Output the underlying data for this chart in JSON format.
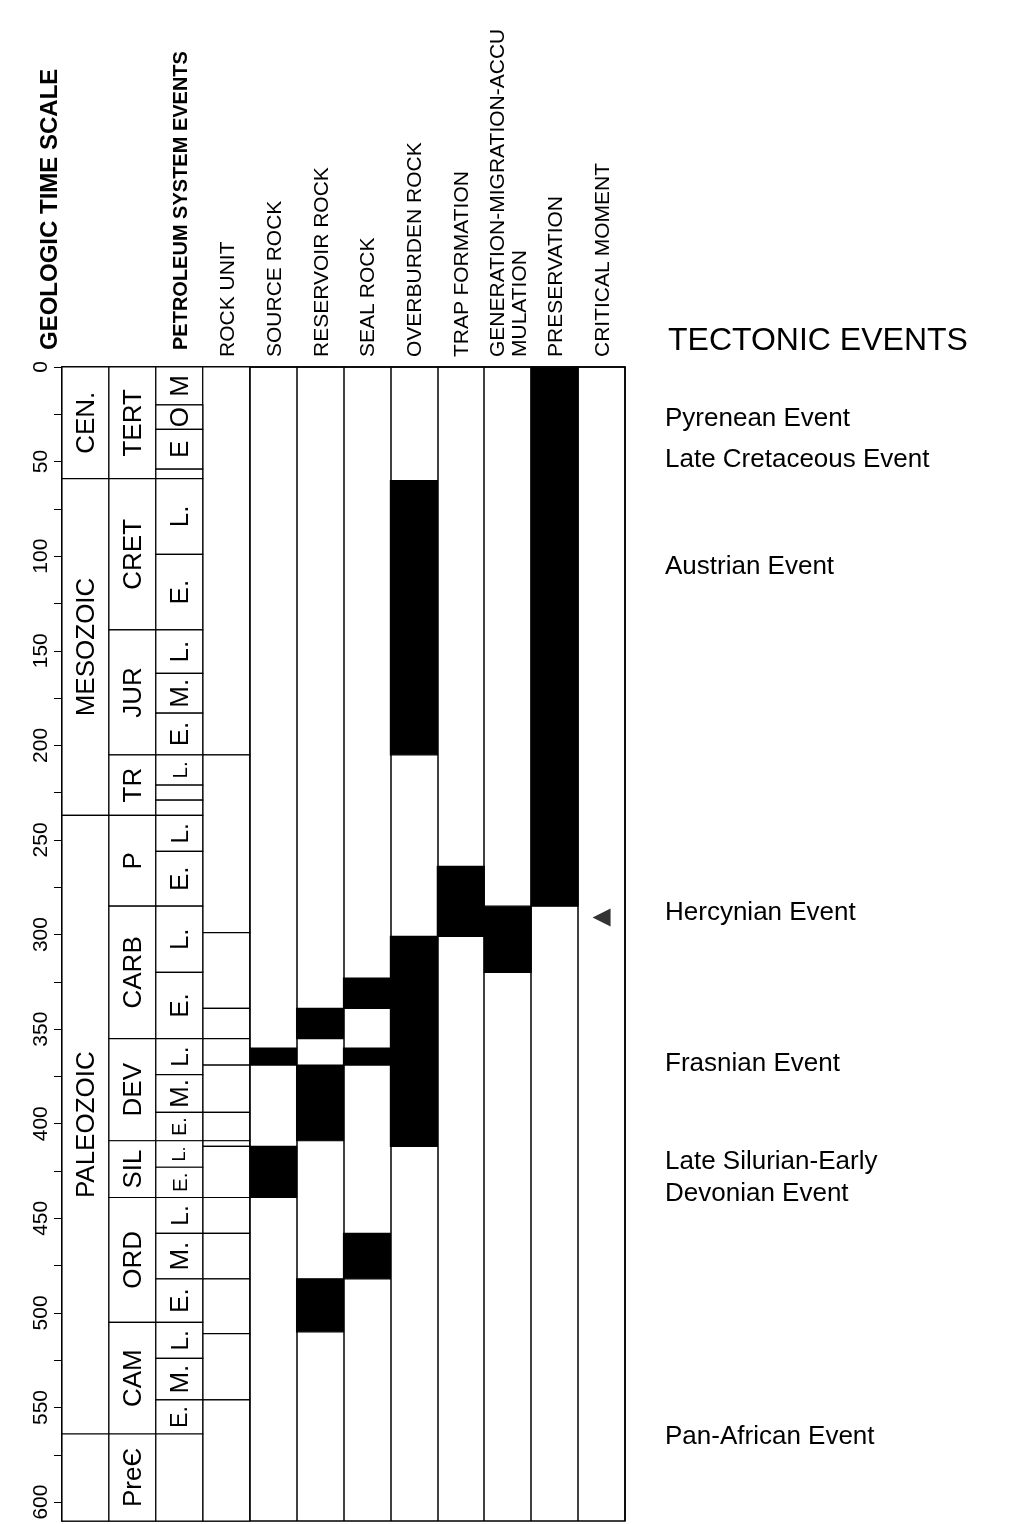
{
  "chart_data": {
    "type": "bar",
    "categories": [
      null,
      null,
      null,
      "ROCK UNIT",
      "SOURCE ROCK",
      "RESERVOIR ROCK",
      "SEAL ROCK",
      "OVERBURDEN ROCK",
      "TRAP FORMATION",
      "GENERATION-MIGRATION-ACCUMULATION",
      "PRESERVATION",
      "CRITICAL MOMENT"
    ],
    "ylim": [
      610,
      0
    ],
    "yticks": [
      0,
      {
        "value": 25,
        "label": null
      },
      50,
      {
        "value": 75,
        "label": null
      },
      100,
      {
        "value": 125,
        "label": null
      },
      150,
      {
        "value": 175,
        "label": null
      },
      200,
      {
        "value": 225,
        "label": null
      },
      250,
      {
        "value": 275,
        "label": null
      },
      300,
      {
        "value": 325,
        "label": null
      },
      350,
      {
        "value": 375,
        "label": null
      },
      400,
      {
        "value": 425,
        "label": null
      },
      450,
      {
        "value": 475,
        "label": null
      },
      500,
      {
        "value": 525,
        "label": null
      },
      550,
      {
        "value": 575,
        "label": null
      },
      600
    ],
    "grid": "x",
    "annotations": [
      "GEOLOGIC TIME SCALE",
      "PETROLEUM SYSTEM EVENTS",
      "TECTONIC EVENTS",
      "Pyrenean Event",
      "Late Cretaceous Event",
      "Austrian Event",
      "Hercynian Event",
      "Frasnian Event",
      "Late Silurian-Early Devonian Event",
      "Pan-African Event"
    ],
    "series": [
      {
        "base": [
          0,
          0,
          0,
          0,
          360,
          339,
          323,
          60,
          264,
          285,
          0,
          null
        ],
        "values": [
          59,
          59,
          20,
          205,
          9,
          16,
          16,
          145,
          37,
          35,
          285,
          null
        ],
        "colors": [
          "#ffffff",
          "#ffffff",
          "#ffffff",
          "#ffffff",
          "#000000",
          "#000000",
          "#000000",
          "#000000",
          "#000000",
          "#000000",
          "#000000",
          null
        ],
        "value_labels": [
          "CEN.",
          "TERT",
          "M",
          null,
          null,
          null,
          null,
          null,
          null,
          null,
          null,
          null
        ]
      },
      {
        "base": [
          59,
          59,
          20,
          205,
          412,
          369,
          360,
          301,
          null,
          null,
          null,
          null
        ],
        "values": [
          178,
          80,
          13,
          94,
          27,
          40,
          9,
          111,
          null,
          null,
          null,
          null
        ],
        "colors": [
          "#ffffff",
          "#ffffff",
          "#ffffff",
          "#ffffff",
          "#000000",
          "#000000",
          "#000000",
          "#000000",
          null,
          null,
          null,
          null
        ],
        "value_labels": [
          "MESOZOIC",
          "CRET",
          "O",
          null,
          null,
          null,
          null,
          null,
          null,
          null,
          null,
          null
        ]
      },
      {
        "base": [
          237,
          139,
          33,
          299,
          null,
          482,
          458,
          null,
          null,
          null,
          null,
          null
        ],
        "values": [
          327,
          66,
          21,
          40,
          null,
          28,
          24,
          null,
          null,
          null,
          null,
          null
        ],
        "colors": [
          "#ffffff",
          "#ffffff",
          "#ffffff",
          "#ffffff",
          null,
          "#000000",
          "#000000",
          null,
          null,
          null,
          null,
          null
        ],
        "value_labels": [
          "PALEOZOIC",
          "JUR",
          "E",
          null,
          null,
          null,
          null,
          null,
          null,
          null,
          null,
          null
        ]
      },
      {
        "base": [
          564,
          205,
          54,
          339,
          null,
          null,
          null,
          null,
          null,
          null,
          null,
          null
        ],
        "values": [
          46,
          32,
          5,
          16,
          null,
          null,
          null,
          null,
          null,
          null,
          null,
          null
        ],
        "colors": [
          "#ffffff",
          "#ffffff",
          "#ffffff",
          "#ffffff",
          null,
          null,
          null,
          null,
          null,
          null,
          null,
          null
        ],
        "value_labels": [
          null,
          "TR",
          null,
          null,
          null,
          null,
          null,
          null,
          null,
          null,
          null,
          null
        ]
      },
      {
        "base": [
          null,
          237,
          59,
          355,
          null,
          null,
          null,
          null,
          null,
          null,
          null,
          null
        ],
        "values": [
          null,
          48,
          40,
          14,
          null,
          null,
          null,
          null,
          null,
          null,
          null,
          null
        ],
        "colors": [
          null,
          "#ffffff",
          "#ffffff",
          "#ffffff",
          null,
          null,
          null,
          null,
          null,
          null,
          null,
          null
        ],
        "value_labels": [
          null,
          "P",
          "L.",
          null,
          null,
          null,
          null,
          null,
          null,
          null,
          null,
          null
        ]
      },
      {
        "base": [
          null,
          285,
          99,
          369,
          null,
          null,
          null,
          null,
          null,
          null,
          null,
          null
        ],
        "values": [
          null,
          70,
          40,
          25,
          null,
          null,
          null,
          null,
          null,
          null,
          null,
          null
        ],
        "colors": [
          null,
          "#ffffff",
          "#ffffff",
          "#ffffff",
          null,
          null,
          null,
          null,
          null,
          null,
          null,
          null
        ],
        "value_labels": [
          null,
          "CARB",
          "E.",
          null,
          null,
          null,
          null,
          null,
          null,
          null,
          null,
          null
        ]
      },
      {
        "base": [
          null,
          355,
          139,
          394,
          null,
          null,
          null,
          null,
          null,
          null,
          null,
          null
        ],
        "values": [
          null,
          54,
          23,
          15,
          null,
          null,
          null,
          null,
          null,
          null,
          null,
          null
        ],
        "colors": [
          null,
          "#ffffff",
          "#ffffff",
          "#ffffff",
          null,
          null,
          null,
          null,
          null,
          null,
          null,
          null
        ],
        "value_labels": [
          null,
          "DEV",
          "L.",
          null,
          null,
          null,
          null,
          null,
          null,
          null,
          null,
          null
        ]
      },
      {
        "base": [
          null,
          409,
          162,
          409,
          null,
          null,
          null,
          null,
          null,
          null,
          null,
          null
        ],
        "values": [
          null,
          30,
          21,
          3,
          null,
          null,
          null,
          null,
          null,
          null,
          null,
          null
        ],
        "colors": [
          null,
          "#ffffff",
          "#ffffff",
          "#ffffff",
          null,
          null,
          null,
          null,
          null,
          null,
          null,
          null
        ],
        "value_labels": [
          null,
          "SIL",
          "M.",
          null,
          null,
          null,
          null,
          null,
          null,
          null,
          null,
          null
        ]
      },
      {
        "base": [
          null,
          439,
          183,
          412,
          null,
          null,
          null,
          null,
          null,
          null,
          null,
          null
        ],
        "values": [
          null,
          66,
          22,
          27,
          null,
          null,
          null,
          null,
          null,
          null,
          null,
          null
        ],
        "colors": [
          null,
          "#ffffff",
          "#ffffff",
          "#ffffff",
          null,
          null,
          null,
          null,
          null,
          null,
          null,
          null
        ],
        "value_labels": [
          null,
          "ORD",
          "E.",
          null,
          null,
          null,
          null,
          null,
          null,
          null,
          null,
          null
        ]
      },
      {
        "base": [
          null,
          505,
          205,
          439,
          null,
          null,
          null,
          null,
          null,
          null,
          null,
          null
        ],
        "values": [
          null,
          59,
          16,
          19,
          null,
          null,
          null,
          null,
          null,
          null,
          null,
          null
        ],
        "colors": [
          null,
          "#ffffff",
          "#ffffff",
          "#ffffff",
          null,
          null,
          null,
          null,
          null,
          null,
          null,
          null
        ],
        "value_labels": [
          null,
          "CAM",
          "L.",
          null,
          null,
          null,
          null,
          null,
          null,
          null,
          null,
          null
        ]
      },
      {
        "base": [
          null,
          564,
          221,
          458,
          null,
          null,
          null,
          null,
          null,
          null,
          null,
          null
        ],
        "values": [
          null,
          46,
          8,
          24,
          null,
          null,
          null,
          null,
          null,
          null,
          null,
          null
        ],
        "colors": [
          null,
          "#ffffff",
          "#ffffff",
          "#ffffff",
          null,
          null,
          null,
          null,
          null,
          null,
          null,
          null
        ],
        "value_labels": [
          null,
          "PreЄ",
          null,
          null,
          null,
          null,
          null,
          null,
          null,
          null,
          null,
          null
        ]
      },
      {
        "base": [
          null,
          null,
          229,
          482,
          null,
          null,
          null,
          null,
          null,
          null,
          null,
          null
        ],
        "values": [
          null,
          null,
          8,
          29,
          null,
          null,
          null,
          null,
          null,
          null,
          null,
          null
        ],
        "colors": [
          null,
          null,
          "#ffffff",
          "#ffffff",
          null,
          null,
          null,
          null,
          null,
          null,
          null,
          null
        ]
      },
      {
        "base": [
          null,
          null,
          237,
          511,
          null,
          null,
          null,
          null,
          null,
          null,
          null,
          null
        ],
        "values": [
          null,
          null,
          19,
          35,
          null,
          null,
          null,
          null,
          null,
          null,
          null,
          null
        ],
        "colors": [
          null,
          null,
          "#ffffff",
          "#ffffff",
          null,
          null,
          null,
          null,
          null,
          null,
          null,
          null
        ],
        "value_labels": [
          null,
          null,
          "L.",
          null,
          null,
          null,
          null,
          null,
          null,
          null,
          null,
          null
        ]
      },
      {
        "base": [
          null,
          null,
          256,
          546,
          null,
          null,
          null,
          null,
          null,
          null,
          null,
          null
        ],
        "values": [
          null,
          null,
          29,
          64,
          null,
          null,
          null,
          null,
          null,
          null,
          null,
          null
        ],
        "colors": [
          null,
          null,
          "#ffffff",
          "#ffffff",
          null,
          null,
          null,
          null,
          null,
          null,
          null,
          null
        ],
        "value_labels": [
          null,
          null,
          "E.",
          null,
          null,
          null,
          null,
          null,
          null,
          null,
          null,
          null
        ]
      },
      {
        "base": [
          null,
          null,
          285,
          null,
          null,
          null,
          null,
          null,
          null,
          null,
          null,
          null
        ],
        "values": [
          null,
          null,
          35,
          null,
          null,
          null,
          null,
          null,
          null,
          null,
          null,
          null
        ],
        "colors": [
          null,
          null,
          "#ffffff",
          null,
          null,
          null,
          null,
          null,
          null,
          null,
          null,
          null
        ],
        "value_labels": [
          null,
          null,
          "L.",
          null,
          null,
          null,
          null,
          null,
          null,
          null,
          null,
          null
        ]
      },
      {
        "base": [
          null,
          null,
          320,
          null,
          null,
          null,
          null,
          null,
          null,
          null,
          null,
          null
        ],
        "values": [
          null,
          null,
          35,
          null,
          null,
          null,
          null,
          null,
          null,
          null,
          null,
          null
        ],
        "colors": [
          null,
          null,
          "#ffffff",
          null,
          null,
          null,
          null,
          null,
          null,
          null,
          null,
          null
        ],
        "value_labels": [
          null,
          null,
          "E.",
          null,
          null,
          null,
          null,
          null,
          null,
          null,
          null,
          null
        ]
      },
      {
        "base": [
          null,
          null,
          355,
          null,
          null,
          null,
          null,
          null,
          null,
          null,
          null,
          null
        ],
        "values": [
          null,
          null,
          19,
          null,
          null,
          null,
          null,
          null,
          null,
          null,
          null,
          null
        ],
        "colors": [
          null,
          null,
          "#ffffff",
          null,
          null,
          null,
          null,
          null,
          null,
          null,
          null,
          null
        ],
        "value_labels": [
          null,
          null,
          "L.",
          null,
          null,
          null,
          null,
          null,
          null,
          null,
          null,
          null
        ]
      },
      {
        "base": [
          null,
          null,
          374,
          null,
          null,
          null,
          null,
          null,
          null,
          null,
          null,
          null
        ],
        "values": [
          null,
          null,
          20,
          null,
          null,
          null,
          null,
          null,
          null,
          null,
          null,
          null
        ],
        "colors": [
          null,
          null,
          "#ffffff",
          null,
          null,
          null,
          null,
          null,
          null,
          null,
          null,
          null
        ],
        "value_labels": [
          null,
          null,
          "M.",
          null,
          null,
          null,
          null,
          null,
          null,
          null,
          null,
          null
        ]
      },
      {
        "base": [
          null,
          null,
          394,
          null,
          null,
          null,
          null,
          null,
          null,
          null,
          null,
          null
        ],
        "values": [
          null,
          null,
          15,
          null,
          null,
          null,
          null,
          null,
          null,
          null,
          null,
          null
        ],
        "colors": [
          null,
          null,
          "#ffffff",
          null,
          null,
          null,
          null,
          null,
          null,
          null,
          null,
          null
        ],
        "value_labels": [
          null,
          null,
          "E.",
          null,
          null,
          null,
          null,
          null,
          null,
          null,
          null,
          null
        ]
      },
      {
        "base": [
          null,
          null,
          409,
          null,
          null,
          null,
          null,
          null,
          null,
          null,
          null,
          null
        ],
        "values": [
          null,
          null,
          14,
          null,
          null,
          null,
          null,
          null,
          null,
          null,
          null,
          null
        ],
        "colors": [
          null,
          null,
          "#ffffff",
          null,
          null,
          null,
          null,
          null,
          null,
          null,
          null,
          null
        ],
        "value_labels": [
          null,
          null,
          "L.",
          null,
          null,
          null,
          null,
          null,
          null,
          null,
          null,
          null
        ]
      },
      {
        "base": [
          null,
          null,
          423,
          null,
          null,
          null,
          null,
          null,
          null,
          null,
          null,
          null
        ],
        "values": [
          null,
          null,
          16,
          null,
          null,
          null,
          null,
          null,
          null,
          null,
          null,
          null
        ],
        "colors": [
          null,
          null,
          "#ffffff",
          null,
          null,
          null,
          null,
          null,
          null,
          null,
          null,
          null
        ],
        "value_labels": [
          null,
          null,
          "E.",
          null,
          null,
          null,
          null,
          null,
          null,
          null,
          null,
          null
        ]
      },
      {
        "base": [
          null,
          null,
          439,
          null,
          null,
          null,
          null,
          null,
          null,
          null,
          null,
          null
        ],
        "values": [
          null,
          null,
          19,
          null,
          null,
          null,
          null,
          null,
          null,
          null,
          null,
          null
        ],
        "colors": [
          null,
          null,
          "#ffffff",
          null,
          null,
          null,
          null,
          null,
          null,
          null,
          null,
          null
        ],
        "value_labels": [
          null,
          null,
          "L.",
          null,
          null,
          null,
          null,
          null,
          null,
          null,
          null,
          null
        ]
      },
      {
        "base": [
          null,
          null,
          458,
          null,
          null,
          null,
          null,
          null,
          null,
          null,
          null,
          null
        ],
        "values": [
          null,
          null,
          24,
          null,
          null,
          null,
          null,
          null,
          null,
          null,
          null,
          null
        ],
        "colors": [
          null,
          null,
          "#ffffff",
          null,
          null,
          null,
          null,
          null,
          null,
          null,
          null,
          null
        ],
        "value_labels": [
          null,
          null,
          "M.",
          null,
          null,
          null,
          null,
          null,
          null,
          null,
          null,
          null
        ]
      },
      {
        "base": [
          null,
          null,
          482,
          null,
          null,
          null,
          null,
          null,
          null,
          null,
          null,
          null
        ],
        "values": [
          null,
          null,
          23,
          null,
          null,
          null,
          null,
          null,
          null,
          null,
          null,
          null
        ],
        "colors": [
          null,
          null,
          "#ffffff",
          null,
          null,
          null,
          null,
          null,
          null,
          null,
          null,
          null
        ],
        "value_labels": [
          null,
          null,
          "E.",
          null,
          null,
          null,
          null,
          null,
          null,
          null,
          null,
          null
        ]
      },
      {
        "base": [
          null,
          null,
          505,
          null,
          null,
          null,
          null,
          null,
          null,
          null,
          null,
          null
        ],
        "values": [
          null,
          null,
          19,
          null,
          null,
          null,
          null,
          null,
          null,
          null,
          null,
          null
        ],
        "colors": [
          null,
          null,
          "#ffffff",
          null,
          null,
          null,
          null,
          null,
          null,
          null,
          null,
          null
        ],
        "value_labels": [
          null,
          null,
          "L.",
          null,
          null,
          null,
          null,
          null,
          null,
          null,
          null,
          null
        ]
      },
      {
        "base": [
          null,
          null,
          524,
          null,
          null,
          null,
          null,
          null,
          null,
          null,
          null,
          null
        ],
        "values": [
          null,
          null,
          22,
          null,
          null,
          null,
          null,
          null,
          null,
          null,
          null,
          null
        ],
        "colors": [
          null,
          null,
          "#ffffff",
          null,
          null,
          null,
          null,
          null,
          null,
          null,
          null,
          null
        ],
        "value_labels": [
          null,
          null,
          "M.",
          null,
          null,
          null,
          null,
          null,
          null,
          null,
          null,
          null
        ]
      },
      {
        "base": [
          null,
          null,
          546,
          null,
          null,
          null,
          null,
          null,
          null,
          null,
          null,
          null
        ],
        "values": [
          null,
          null,
          18,
          null,
          null,
          null,
          null,
          null,
          null,
          null,
          null,
          null
        ],
        "colors": [
          null,
          null,
          "#ffffff",
          null,
          null,
          null,
          null,
          null,
          null,
          null,
          null,
          null
        ],
        "value_labels": [
          null,
          null,
          "E.",
          null,
          null,
          null,
          null,
          null,
          null,
          null,
          null,
          null
        ]
      },
      {
        "base": [
          null,
          null,
          564,
          null,
          null,
          null,
          null,
          null,
          null,
          null,
          null,
          null
        ],
        "values": [
          null,
          null,
          46,
          null,
          null,
          null,
          null,
          null,
          null,
          null,
          null,
          null
        ],
        "colors": [
          null,
          null,
          "#ffffff",
          null,
          null,
          null,
          null,
          null,
          null,
          null,
          null,
          null
        ]
      },
      {
        "type": "scatter",
        "x": [
          "CRITICAL MOMENT"
        ],
        "values": [
          291
        ],
        "color": "#000000",
        "marker": "triangle"
      }
    ]
  }
}
